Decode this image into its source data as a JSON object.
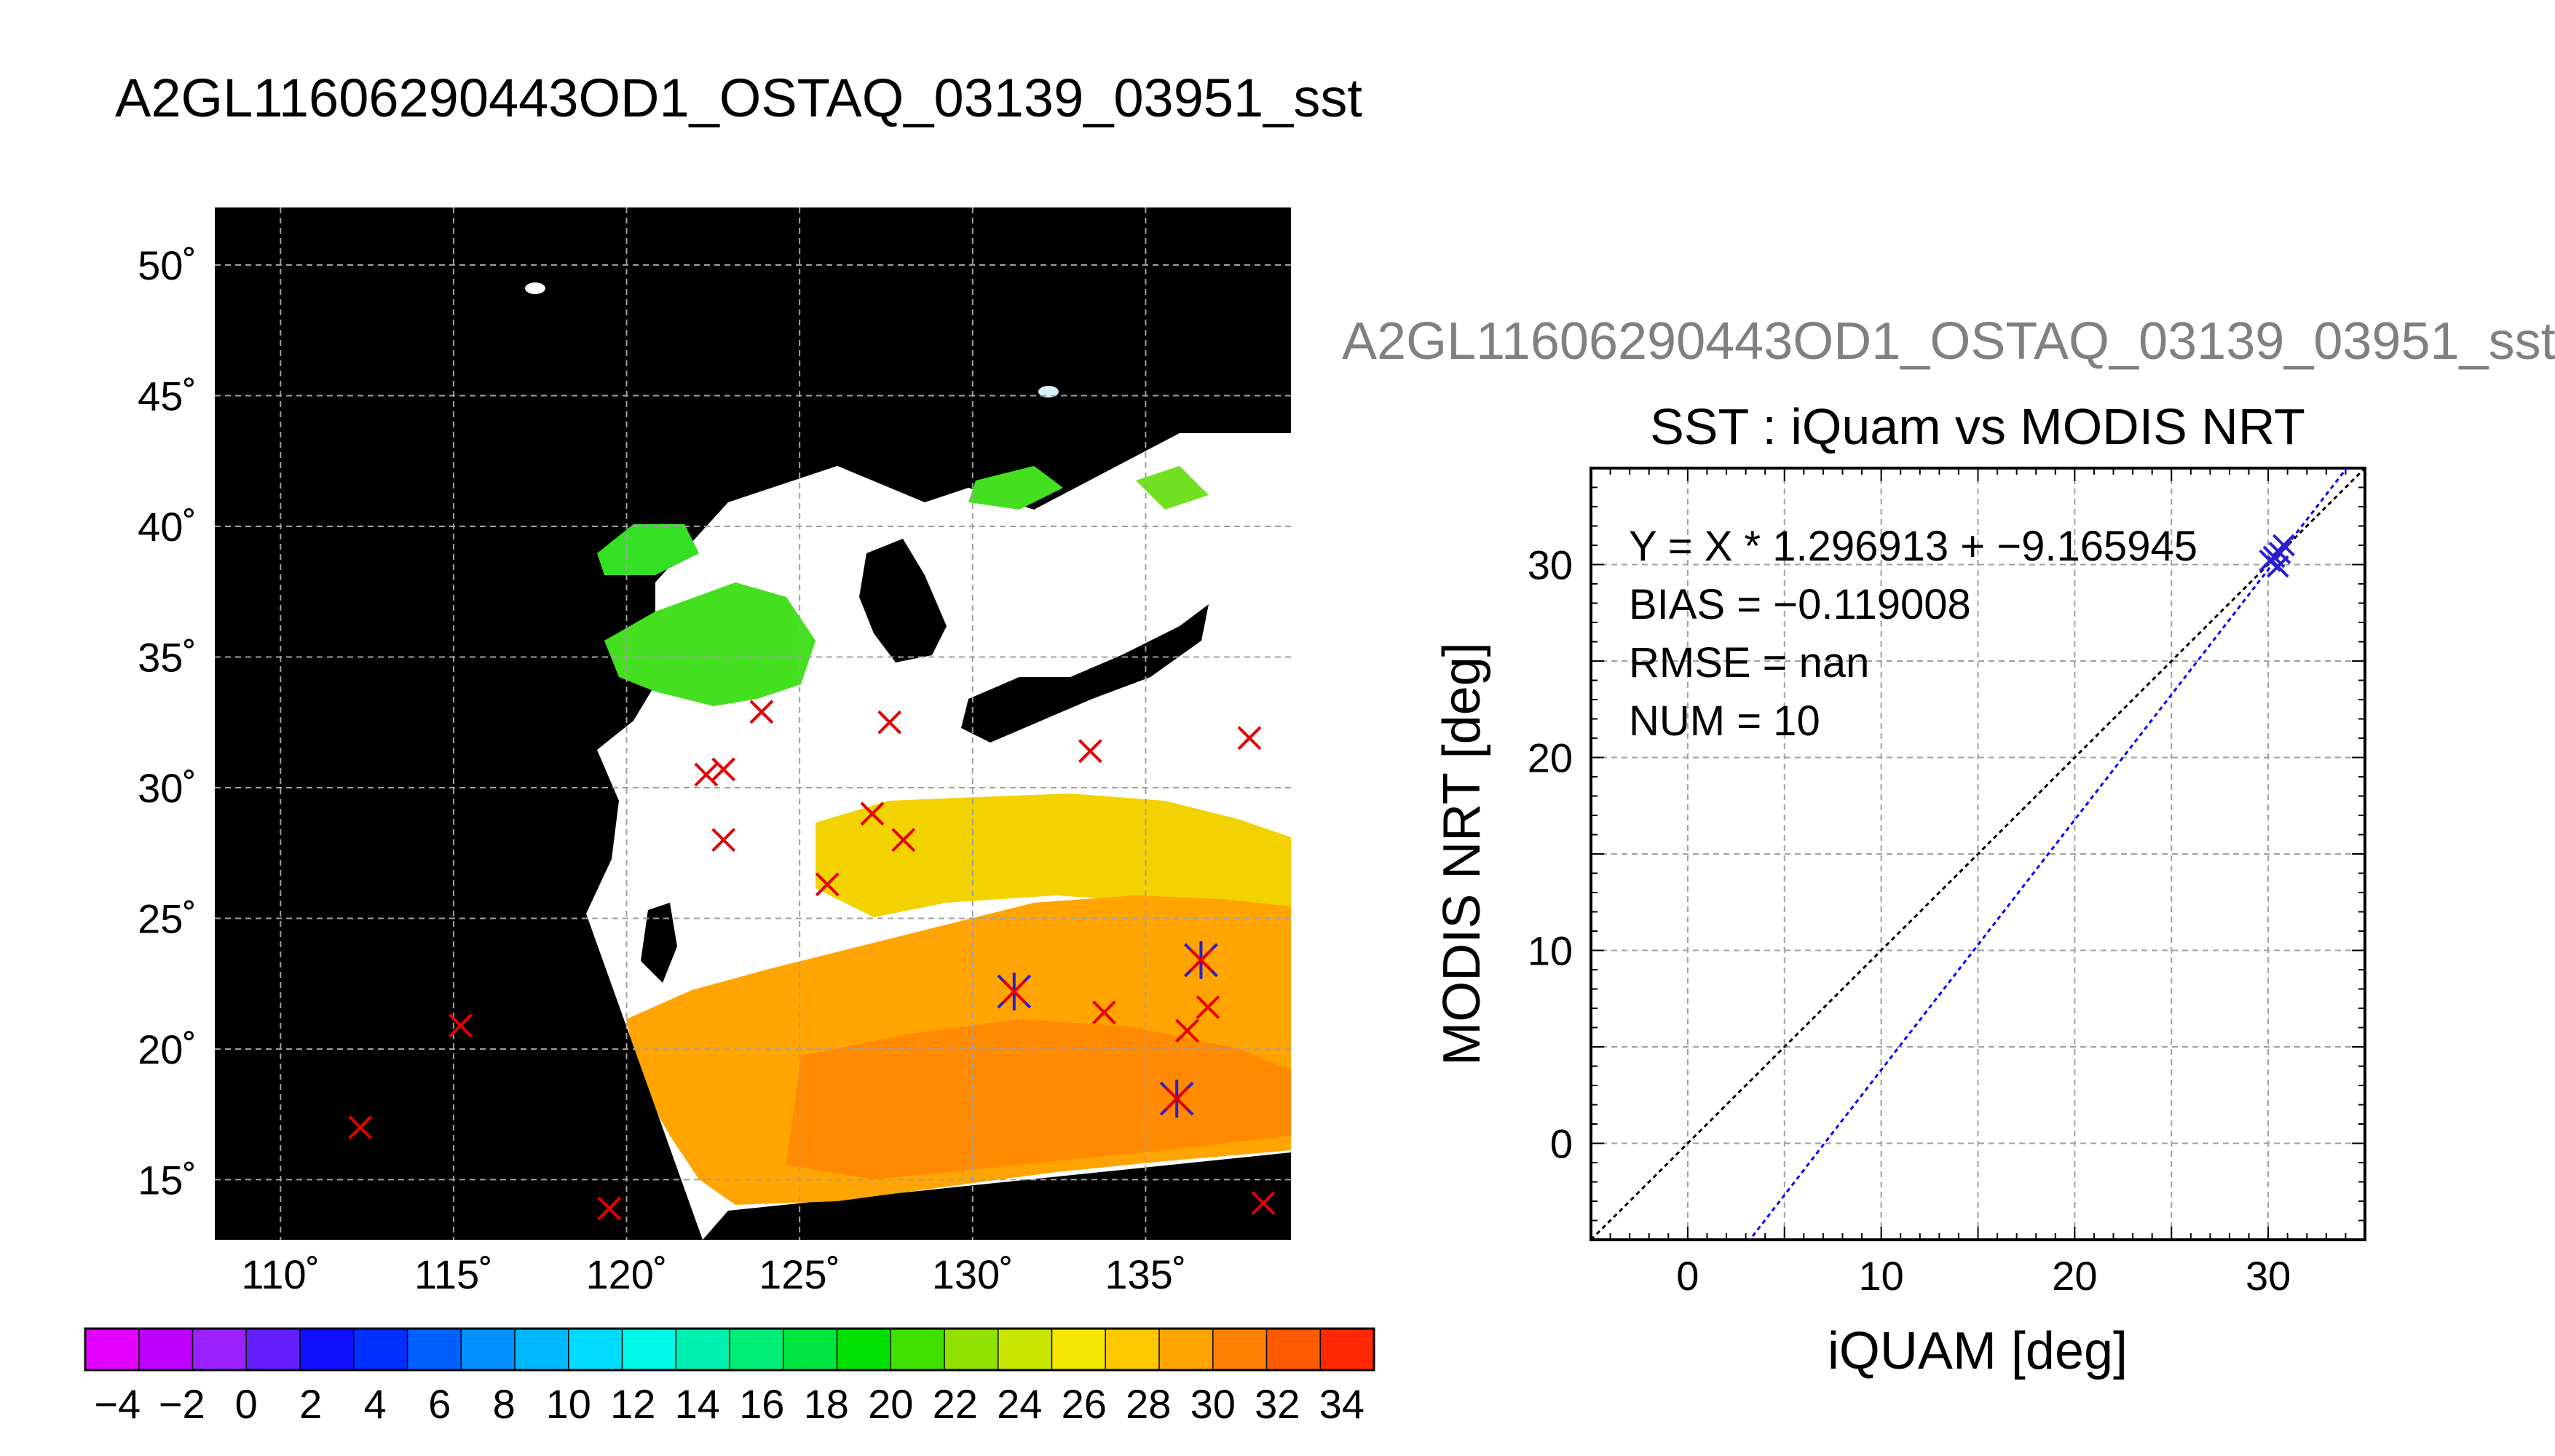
{
  "main_title": "A2GL11606290443OD1_OSTAQ_03139_03951_sst",
  "sub_title": "A2GL11606290443OD1_OSTAQ_03139_03951_sst",
  "colors": {
    "map_background": "#000000",
    "land_cloud": "#ffffff",
    "iquam_marker": "#e60000",
    "matchup_marker": "#2a1fd0",
    "identity_line": "#000000",
    "fit_line": "#0000ff",
    "grid": "#a0a0a0"
  },
  "chart_data": [
    {
      "type": "map",
      "lon_ticks": [
        110,
        115,
        120,
        125,
        130,
        135
      ],
      "lat_ticks": [
        15,
        20,
        25,
        30,
        35,
        40,
        45,
        50
      ],
      "lon_labels": [
        "110˚",
        "115˚",
        "120˚",
        "125˚",
        "130˚",
        "135˚"
      ],
      "lat_labels": [
        "15˚",
        "20˚",
        "25˚",
        "30˚",
        "35˚",
        "40˚",
        "45˚",
        "50˚"
      ],
      "xlim": [
        108.1,
        139.2
      ],
      "ylim": [
        12.7,
        52.2
      ],
      "grid": true,
      "iquam_points": [
        {
          "lon": 112.3,
          "lat": 17.0
        },
        {
          "lon": 115.2,
          "lat": 20.9
        },
        {
          "lon": 119.5,
          "lat": 13.9
        },
        {
          "lon": 122.3,
          "lat": 30.5
        },
        {
          "lon": 122.8,
          "lat": 30.7
        },
        {
          "lon": 122.8,
          "lat": 28.0
        },
        {
          "lon": 123.9,
          "lat": 32.9
        },
        {
          "lon": 125.8,
          "lat": 26.3
        },
        {
          "lon": 127.1,
          "lat": 29.0
        },
        {
          "lon": 127.6,
          "lat": 32.5
        },
        {
          "lon": 128.0,
          "lat": 28.0
        },
        {
          "lon": 131.2,
          "lat": 22.2
        },
        {
          "lon": 133.4,
          "lat": 31.4
        },
        {
          "lon": 133.8,
          "lat": 21.4
        },
        {
          "lon": 135.9,
          "lat": 18.1
        },
        {
          "lon": 136.2,
          "lat": 20.7
        },
        {
          "lon": 136.6,
          "lat": 23.4
        },
        {
          "lon": 136.8,
          "lat": 21.6
        },
        {
          "lon": 138.0,
          "lat": 31.9
        },
        {
          "lon": 138.4,
          "lat": 14.1
        }
      ],
      "matchup_points": [
        {
          "lon": 131.2,
          "lat": 22.2
        },
        {
          "lon": 135.9,
          "lat": 18.1
        },
        {
          "lon": 136.6,
          "lat": 23.4
        }
      ]
    },
    {
      "type": "colorbar",
      "range": [
        -5,
        35
      ],
      "tick_labels": [
        "−4",
        "−2",
        "0",
        "2",
        "4",
        "6",
        "8",
        "10",
        "12",
        "14",
        "16",
        "18",
        "20",
        "22",
        "24",
        "26",
        "28",
        "30",
        "32",
        "34"
      ],
      "tick_values": [
        -4,
        -2,
        0,
        2,
        4,
        6,
        8,
        10,
        12,
        14,
        16,
        18,
        20,
        22,
        24,
        26,
        28,
        30,
        32,
        34
      ],
      "colors": [
        "#e400ff",
        "#c000ff",
        "#9a20ff",
        "#6620ff",
        "#1010ff",
        "#0030ff",
        "#0060ff",
        "#0090ff",
        "#00b8ff",
        "#00dcff",
        "#00f8e8",
        "#00f0b0",
        "#00ee78",
        "#00e640",
        "#00e000",
        "#40e000",
        "#90e000",
        "#c8e600",
        "#f4e600",
        "#ffc800",
        "#ffa400",
        "#ff8000",
        "#ff5a00",
        "#ff2800"
      ]
    },
    {
      "type": "scatter",
      "title": "SST : iQuam vs MODIS NRT",
      "xlabel": "iQUAM [deg]",
      "ylabel": "MODIS NRT [deg]",
      "xlim": [
        -5,
        35
      ],
      "ylim": [
        -5,
        35
      ],
      "x_ticks": [
        0,
        10,
        20,
        30
      ],
      "y_ticks": [
        0,
        10,
        20,
        30
      ],
      "grid": true,
      "stats": [
        "Y = X * 1.296913 + −9.165945",
        "BIAS = −0.119008",
        "RMSE = nan",
        "NUM = 10"
      ],
      "fit": {
        "slope": 1.296913,
        "intercept": -9.165945
      },
      "points": [
        {
          "x": 30.1,
          "y": 30.2
        },
        {
          "x": 30.3,
          "y": 30.4
        },
        {
          "x": 30.5,
          "y": 29.9
        },
        {
          "x": 30.6,
          "y": 30.6
        },
        {
          "x": 30.8,
          "y": 31.0
        }
      ]
    }
  ]
}
